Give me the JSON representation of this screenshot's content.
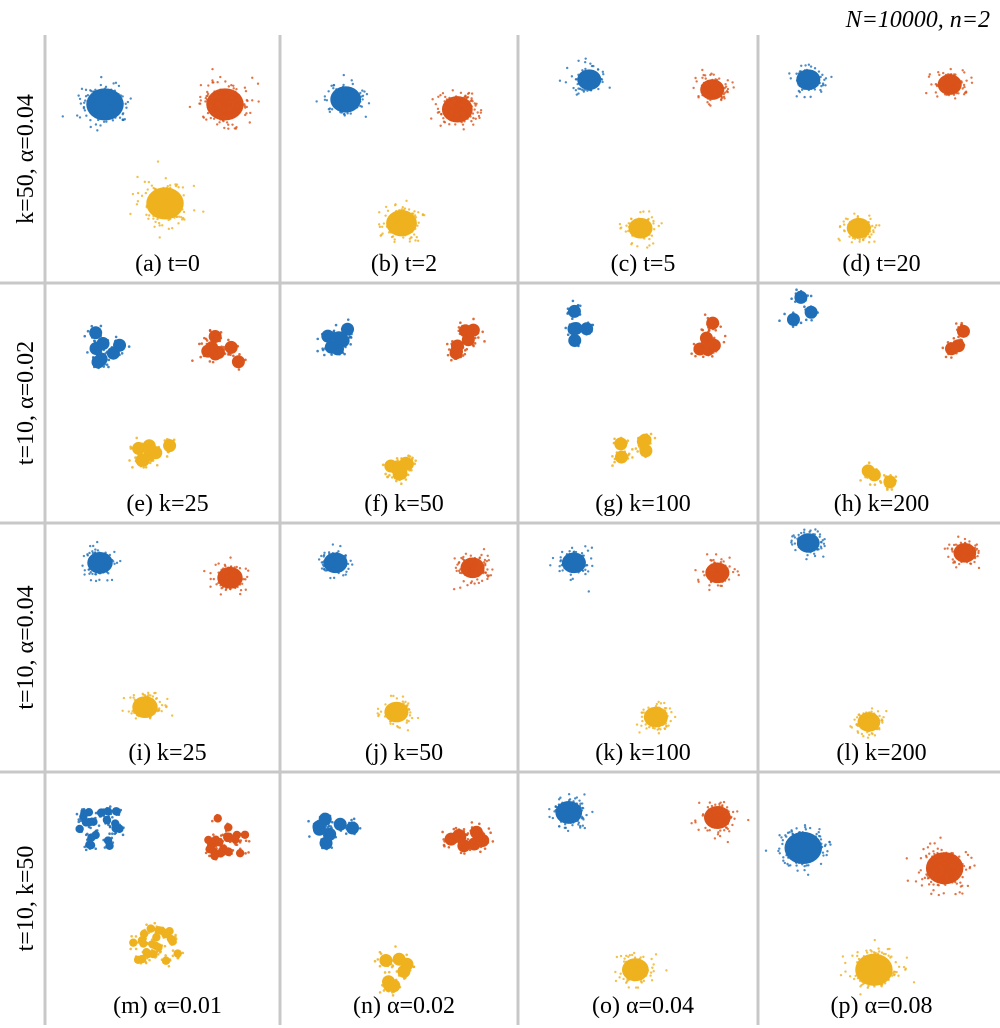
{
  "title": "N=10000, n=2",
  "colors": {
    "blue": "#1f6fb8",
    "orange": "#d9531a",
    "yellow": "#efb21f",
    "grid": "#c8c8c8"
  },
  "chart_data": {
    "type": "scatter",
    "layout": "4x4 grid of small multiples",
    "axes_shown": false,
    "classes": [
      "blue",
      "orange",
      "yellow"
    ],
    "rows": [
      {
        "label": "k=50, α=0.04",
        "panels": [
          {
            "caption": "(a) t=0",
            "style": "clouds",
            "spread": 1.0,
            "clusters": [
              {
                "color": "blue",
                "cx": 0.4,
                "cy": 0.6
              },
              {
                "color": "orange",
                "cx": 1.6,
                "cy": 0.6
              },
              {
                "color": "yellow",
                "cx": 1.0,
                "cy": 1.6
              }
            ]
          },
          {
            "caption": "(b) t=2",
            "style": "clouds",
            "spread": 0.75,
            "clusters": [
              {
                "color": "blue",
                "cx": 0.45,
                "cy": 0.55
              },
              {
                "color": "orange",
                "cx": 1.55,
                "cy": 0.65
              },
              {
                "color": "yellow",
                "cx": 1.0,
                "cy": 1.8
              }
            ]
          },
          {
            "caption": "(c) t=5",
            "style": "clouds",
            "spread": 0.5,
            "clusters": [
              {
                "color": "blue",
                "cx": 0.5,
                "cy": 0.35
              },
              {
                "color": "orange",
                "cx": 1.7,
                "cy": 0.45
              },
              {
                "color": "yellow",
                "cx": 1.0,
                "cy": 1.85
              }
            ]
          },
          {
            "caption": "(d) t=20",
            "style": "clouds",
            "spread": 0.5,
            "clusters": [
              {
                "color": "blue",
                "cx": 0.3,
                "cy": 0.35
              },
              {
                "color": "orange",
                "cx": 1.7,
                "cy": 0.4
              },
              {
                "color": "yellow",
                "cx": 0.8,
                "cy": 1.85
              }
            ]
          }
        ]
      },
      {
        "label": "t=10, α=0.02",
        "panels": [
          {
            "caption": "(e) k=25",
            "style": "blobs",
            "blobs": 7,
            "spread": 0.6,
            "clusters": [
              {
                "color": "blue",
                "cx": 0.4,
                "cy": 0.55
              },
              {
                "color": "orange",
                "cx": 1.6,
                "cy": 0.6
              },
              {
                "color": "yellow",
                "cx": 0.9,
                "cy": 1.65
              }
            ]
          },
          {
            "caption": "(f) k=50",
            "style": "blobs",
            "blobs": 6,
            "spread": 0.55,
            "clusters": [
              {
                "color": "blue",
                "cx": 0.35,
                "cy": 0.45
              },
              {
                "color": "orange",
                "cx": 1.6,
                "cy": 0.5
              },
              {
                "color": "yellow",
                "cx": 0.9,
                "cy": 1.75
              }
            ]
          },
          {
            "caption": "(g) k=100",
            "style": "blobs",
            "blobs": 5,
            "spread": 0.5,
            "clusters": [
              {
                "color": "blue",
                "cx": 0.35,
                "cy": 0.35
              },
              {
                "color": "orange",
                "cx": 1.6,
                "cy": 0.45
              },
              {
                "color": "yellow",
                "cx": 0.95,
                "cy": 1.65
              }
            ]
          },
          {
            "caption": "(h) k=200",
            "style": "blobs",
            "blobs": 3,
            "spread": 0.45,
            "clusters": [
              {
                "color": "blue",
                "cx": 0.2,
                "cy": 0.2
              },
              {
                "color": "orange",
                "cx": 1.8,
                "cy": 0.45
              },
              {
                "color": "yellow",
                "cx": 1.0,
                "cy": 1.9
              }
            ]
          }
        ]
      },
      {
        "label": "t=10, α=0.04",
        "panels": [
          {
            "caption": "(i) k=25",
            "style": "clouds",
            "spread": 0.55,
            "clusters": [
              {
                "color": "blue",
                "cx": 0.35,
                "cy": 0.3
              },
              {
                "color": "orange",
                "cx": 1.65,
                "cy": 0.45
              },
              {
                "color": "yellow",
                "cx": 0.8,
                "cy": 1.75
              }
            ]
          },
          {
            "caption": "(j) k=50",
            "style": "clouds",
            "spread": 0.5,
            "clusters": [
              {
                "color": "blue",
                "cx": 0.35,
                "cy": 0.3
              },
              {
                "color": "orange",
                "cx": 1.7,
                "cy": 0.35
              },
              {
                "color": "yellow",
                "cx": 0.95,
                "cy": 1.8
              }
            ]
          },
          {
            "caption": "(k) k=100",
            "style": "clouds",
            "spread": 0.5,
            "clusters": [
              {
                "color": "blue",
                "cx": 0.35,
                "cy": 0.3
              },
              {
                "color": "orange",
                "cx": 1.75,
                "cy": 0.4
              },
              {
                "color": "yellow",
                "cx": 1.15,
                "cy": 1.85
              }
            ]
          },
          {
            "caption": "(l) k=200",
            "style": "clouds",
            "spread": 0.45,
            "clusters": [
              {
                "color": "blue",
                "cx": 0.3,
                "cy": 0.1
              },
              {
                "color": "orange",
                "cx": 1.85,
                "cy": 0.2
              },
              {
                "color": "yellow",
                "cx": 0.9,
                "cy": 1.9
              }
            ]
          }
        ]
      },
      {
        "label": "t=10, k=50",
        "panels": [
          {
            "caption": "(m) α=0.01",
            "style": "blobs",
            "blobs": 22,
            "spread": 0.85,
            "clusters": [
              {
                "color": "blue",
                "cx": 0.35,
                "cy": 0.45
              },
              {
                "color": "orange",
                "cx": 1.6,
                "cy": 0.55
              },
              {
                "color": "yellow",
                "cx": 0.9,
                "cy": 1.65
              }
            ]
          },
          {
            "caption": "(n) α=0.02",
            "style": "blobs",
            "blobs": 7,
            "spread": 0.6,
            "clusters": [
              {
                "color": "blue",
                "cx": 0.35,
                "cy": 0.45
              },
              {
                "color": "orange",
                "cx": 1.65,
                "cy": 0.55
              },
              {
                "color": "yellow",
                "cx": 0.9,
                "cy": 1.85
              }
            ]
          },
          {
            "caption": "(o) α=0.04",
            "style": "clouds",
            "spread": 0.6,
            "clusters": [
              {
                "color": "blue",
                "cx": 0.3,
                "cy": 0.3
              },
              {
                "color": "orange",
                "cx": 1.75,
                "cy": 0.35
              },
              {
                "color": "yellow",
                "cx": 0.95,
                "cy": 1.85
              }
            ]
          },
          {
            "caption": "(p) α=0.08",
            "style": "clouds",
            "spread": 1.0,
            "clusters": [
              {
                "color": "blue",
                "cx": 0.25,
                "cy": 0.65
              },
              {
                "color": "orange",
                "cx": 1.65,
                "cy": 0.85
              },
              {
                "color": "yellow",
                "cx": 0.95,
                "cy": 1.85
              }
            ]
          }
        ]
      }
    ]
  }
}
